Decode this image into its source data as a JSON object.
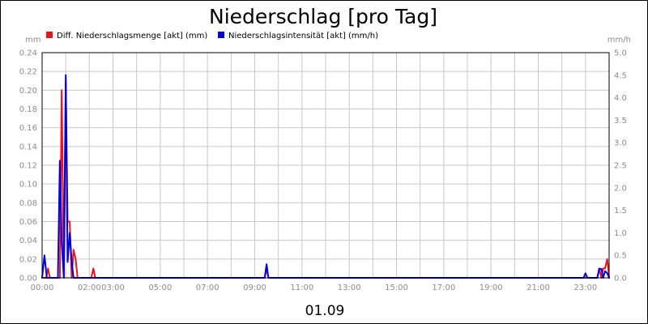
{
  "chart_data": {
    "type": "line",
    "title": "Niederschlag [pro Tag]",
    "x_caption": "01.09",
    "y_unit_left": "mm",
    "y_unit_right": "mm/h",
    "ylim_left": [
      0,
      0.24
    ],
    "ylim_right": [
      0,
      5.0
    ],
    "yticks_left": [
      "0.00",
      "0.02",
      "0.04",
      "0.06",
      "0.08",
      "0.10",
      "0.12",
      "0.14",
      "0.16",
      "0.18",
      "0.20",
      "0.22",
      "0.24"
    ],
    "yticks_right": [
      "0.0",
      "0.5",
      "1.0",
      "1.5",
      "2.0",
      "2.5",
      "3.0",
      "3.5",
      "4.0",
      "4.5",
      "5.0"
    ],
    "xlim_hours": [
      0,
      24
    ],
    "xticks": [
      {
        "h": 0,
        "label": "00:00"
      },
      {
        "h": 2,
        "label": "02:00"
      },
      {
        "h": 3,
        "label": "03:00"
      },
      {
        "h": 5,
        "label": "05:00"
      },
      {
        "h": 7,
        "label": "07:00"
      },
      {
        "h": 9,
        "label": "09:00"
      },
      {
        "h": 11,
        "label": "11:00"
      },
      {
        "h": 13,
        "label": "13:00"
      },
      {
        "h": 15,
        "label": "15:00"
      },
      {
        "h": 17,
        "label": "17:00"
      },
      {
        "h": 19,
        "label": "19:00"
      },
      {
        "h": 21,
        "label": "21:00"
      },
      {
        "h": 23,
        "label": "23:00"
      }
    ],
    "grid": true,
    "legend_placement": "top-left",
    "series": [
      {
        "name": "Diff. Niederschlagsmenge [akt] (mm)",
        "axis": "left",
        "color": "#e8141e",
        "points": [
          [
            0,
            0
          ],
          [
            0.17,
            0
          ],
          [
            0.25,
            0.01
          ],
          [
            0.33,
            0
          ],
          [
            0.75,
            0
          ],
          [
            0.83,
            0.2
          ],
          [
            0.92,
            0
          ],
          [
            1.0,
            0.21
          ],
          [
            1.08,
            0.06
          ],
          [
            1.17,
            0.06
          ],
          [
            1.25,
            0
          ],
          [
            1.33,
            0.03
          ],
          [
            1.42,
            0.02
          ],
          [
            1.5,
            0
          ],
          [
            2.08,
            0
          ],
          [
            2.17,
            0.01
          ],
          [
            2.25,
            0
          ],
          [
            9.42,
            0
          ],
          [
            9.5,
            0.01
          ],
          [
            9.58,
            0
          ],
          [
            23.5,
            0
          ],
          [
            23.58,
            0.01
          ],
          [
            23.67,
            0
          ],
          [
            23.75,
            0.01
          ],
          [
            23.83,
            0.01
          ],
          [
            23.92,
            0.02
          ],
          [
            24,
            0
          ]
        ]
      },
      {
        "name": "Niederschlagsintensität [akt] (mm/h)",
        "axis": "right",
        "color": "#0000dc",
        "points": [
          [
            0,
            0
          ],
          [
            0.1,
            0.5
          ],
          [
            0.2,
            0
          ],
          [
            0.67,
            0
          ],
          [
            0.75,
            2.6
          ],
          [
            0.83,
            0.8
          ],
          [
            0.92,
            0
          ],
          [
            1.0,
            4.5
          ],
          [
            1.08,
            0.35
          ],
          [
            1.17,
            1.0
          ],
          [
            1.25,
            0.35
          ],
          [
            1.33,
            0
          ],
          [
            9.42,
            0
          ],
          [
            9.5,
            0.3
          ],
          [
            9.58,
            0
          ],
          [
            22.92,
            0
          ],
          [
            23.0,
            0.1
          ],
          [
            23.08,
            0
          ],
          [
            23.5,
            0
          ],
          [
            23.58,
            0.2
          ],
          [
            23.67,
            0.2
          ],
          [
            23.75,
            0
          ],
          [
            23.83,
            0.15
          ],
          [
            23.92,
            0.1
          ],
          [
            24,
            0
          ]
        ]
      }
    ]
  }
}
